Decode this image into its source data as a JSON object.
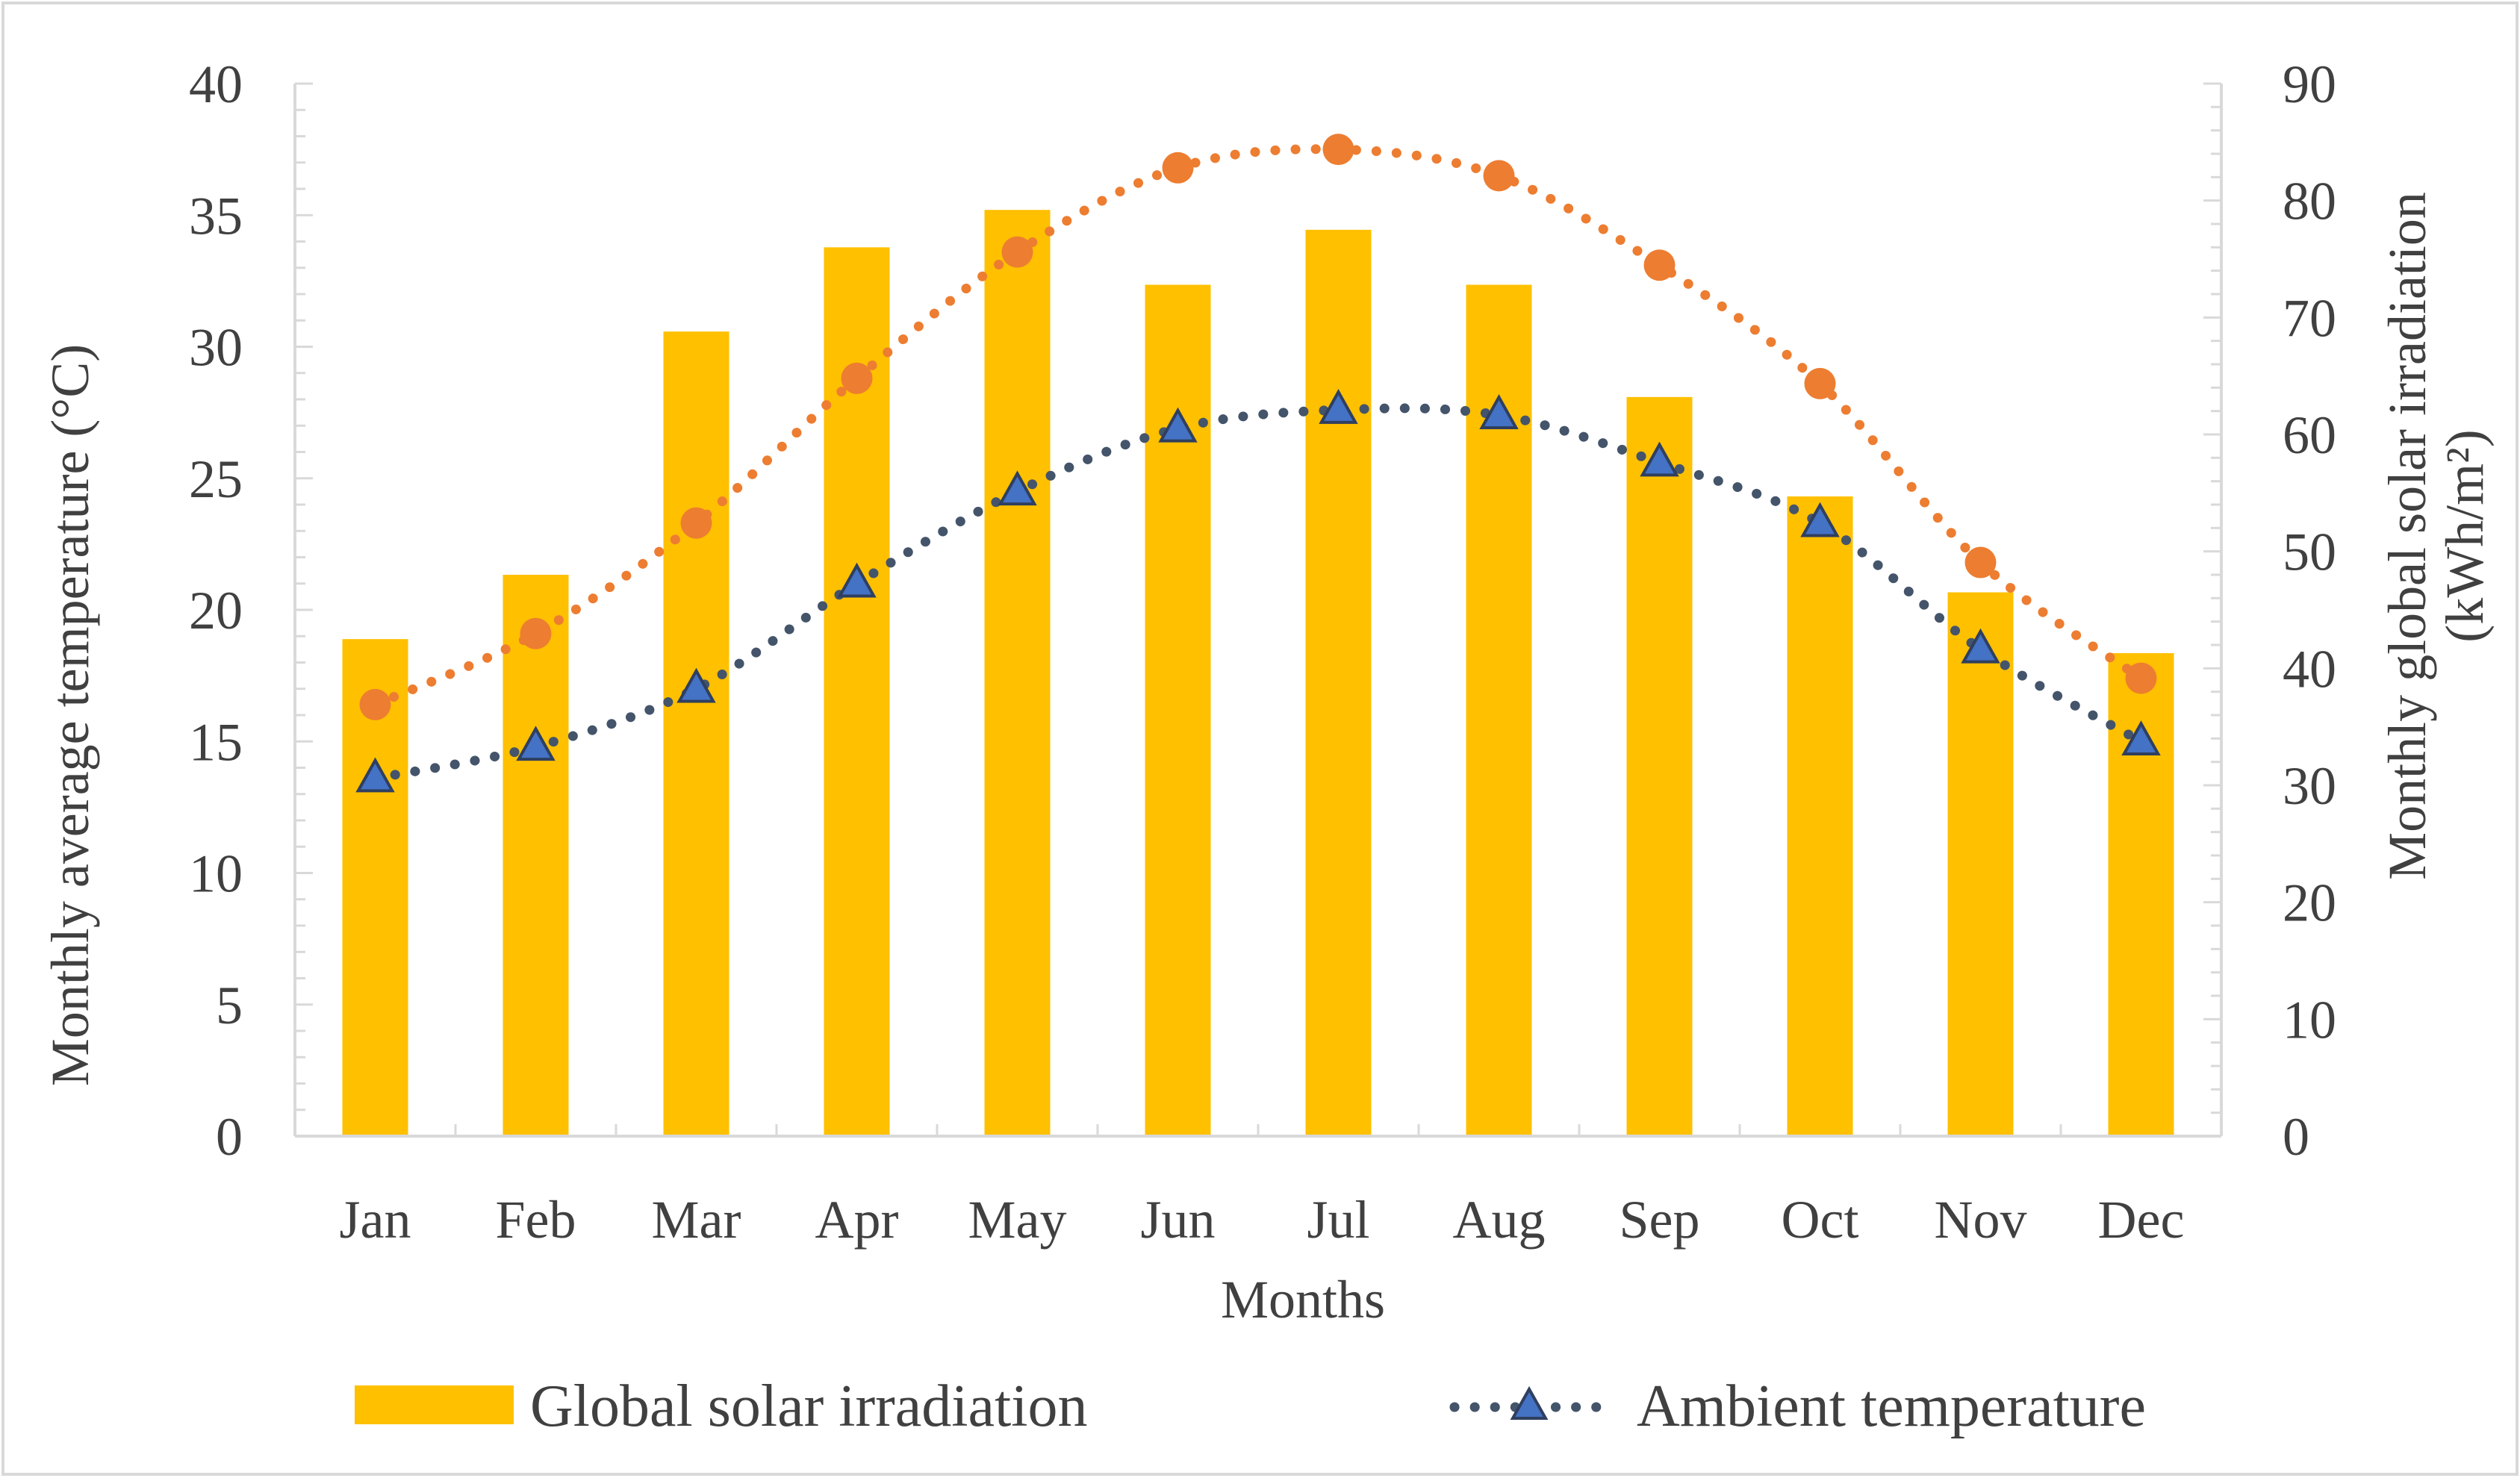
{
  "chart_data": {
    "type": "bar",
    "xlabel": "Months",
    "ylabel_left": "Monthly average temperature (°C)",
    "ylabel_right_line1": "Monthly global solar irradiation",
    "ylabel_right_line2": "(kWh/m²)",
    "categories": [
      "Jan",
      "Feb",
      "Mar",
      "Apr",
      "May",
      "Jun",
      "Jul",
      "Aug",
      "Sep",
      "Oct",
      "Nov",
      "Dec"
    ],
    "y_left": {
      "min": 0,
      "max": 40,
      "step": 5,
      "ticks": [
        "0",
        "5",
        "10",
        "15",
        "20",
        "25",
        "30",
        "35",
        "40"
      ]
    },
    "y_right": {
      "min": 0,
      "max": 90,
      "step": 10,
      "ticks": [
        "0",
        "10",
        "20",
        "30",
        "40",
        "50",
        "60",
        "70",
        "80",
        "90"
      ]
    },
    "series": [
      {
        "name": "Global solar irradiation",
        "type": "bar",
        "axis": "right",
        "color": "#FFC000",
        "values": [
          42.5,
          48.0,
          68.8,
          76.0,
          79.2,
          72.8,
          77.5,
          72.8,
          63.2,
          54.7,
          46.5,
          41.3
        ]
      },
      {
        "name": "Ambient temperature",
        "type": "line",
        "axis": "left",
        "color": "#44546A",
        "marker": "triangle",
        "marker_fill": "#4472C4",
        "values": [
          13.6,
          14.8,
          17.0,
          21.0,
          24.5,
          26.9,
          27.6,
          27.4,
          25.6,
          23.3,
          18.5,
          15.0
        ]
      },
      {
        "name": "",
        "type": "line",
        "axis": "left",
        "color": "#ED7D31",
        "marker": "circle",
        "marker_fill": "#ED7D31",
        "values": [
          16.4,
          19.1,
          23.3,
          28.8,
          33.6,
          36.8,
          37.5,
          36.5,
          33.1,
          28.6,
          21.8,
          17.4
        ]
      }
    ],
    "legend": {
      "position": "bottom",
      "items": [
        "Global solar irradiation",
        "Ambient temperature"
      ]
    }
  }
}
